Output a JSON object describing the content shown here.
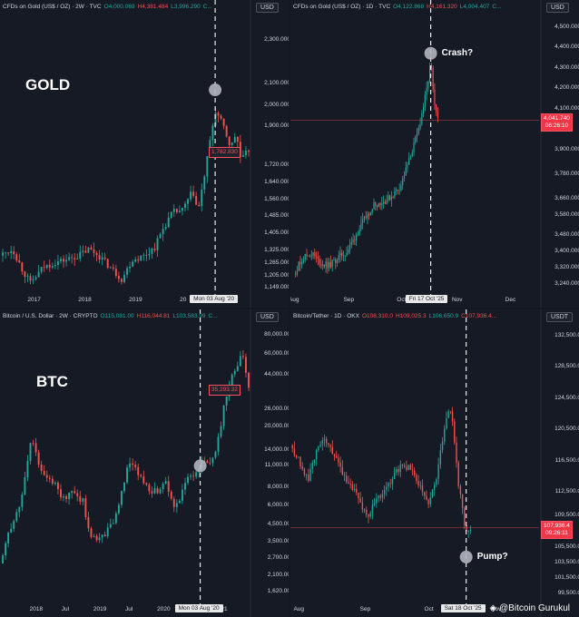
{
  "watermark": {
    "icon": "binance-diamond-icon",
    "text": "@Bitcoin Gurukul"
  },
  "colors": {
    "up": "#26a69a",
    "down": "#ef5350",
    "bg": "#161a25",
    "text": "#d1d4dc"
  },
  "chart_data": [
    {
      "type": "candlestick",
      "id": "gold-2w",
      "header": {
        "title": "CFDs on Gold (US$ / OZ) · 2W · TVC",
        "o": "O4,000.069",
        "h": "H4,381.484",
        "l": "L3,996.290",
        "c": "C..."
      },
      "currency": "USD",
      "label": "GOLD",
      "y_ticks": [
        "2,300.000",
        "2,100.000",
        "2,000.000",
        "1,900.000",
        "1,720.000",
        "1,640.000",
        "1,560.000",
        "1,485.000",
        "1,405.000",
        "1,325.000",
        "1,265.000",
        "1,205.000",
        "1,149.000"
      ],
      "y_tick_values": [
        2300,
        2100,
        2000,
        1900,
        1720,
        1640,
        1560,
        1485,
        1405,
        1325,
        1265,
        1205,
        1149
      ],
      "ylim": [
        1130,
        2420
      ],
      "x_ticks": [
        "2017",
        "2018",
        "2019",
        "20"
      ],
      "x_tick_values": [
        2017.0,
        2018.0,
        2019.0,
        2020.0
      ],
      "xlim": [
        2016.35,
        2021.25
      ],
      "crosshair_x": 2020.59,
      "crosshair_label": "Mon 03 Aug '20",
      "marker": {
        "x": 2020.59,
        "y": 2070
      },
      "last_price": "1,782.830",
      "path": [
        [
          2016.35,
          1300
        ],
        [
          2016.6,
          1330
        ],
        [
          2016.8,
          1230
        ],
        [
          2016.95,
          1170
        ],
        [
          2017.2,
          1245
        ],
        [
          2017.45,
          1270
        ],
        [
          2017.65,
          1280
        ],
        [
          2017.9,
          1300
        ],
        [
          2018.1,
          1330
        ],
        [
          2018.3,
          1300
        ],
        [
          2018.5,
          1250
        ],
        [
          2018.75,
          1190
        ],
        [
          2018.95,
          1280
        ],
        [
          2019.2,
          1300
        ],
        [
          2019.4,
          1340
        ],
        [
          2019.55,
          1420
        ],
        [
          2019.75,
          1500
        ],
        [
          2019.95,
          1510
        ],
        [
          2020.15,
          1600
        ],
        [
          2020.25,
          1500
        ],
        [
          2020.4,
          1700
        ],
        [
          2020.59,
          1975
        ],
        [
          2020.75,
          1900
        ],
        [
          2020.9,
          1800
        ],
        [
          2021.0,
          1870
        ],
        [
          2021.1,
          1740
        ],
        [
          2021.25,
          1790
        ]
      ]
    },
    {
      "type": "candlestick",
      "id": "gold-1d",
      "header": {
        "title": "CFDs on Gold (US$ / OZ) · 1D · TVC",
        "o": "O4,122.868",
        "h": "H4,161.320",
        "l": "L4,004.407",
        "c": "C..."
      },
      "currency": "USD",
      "annotation": "Crash?",
      "y_ticks": [
        "4,500.000",
        "4,400.000",
        "4,300.000",
        "4,200.000",
        "4,100.000",
        "3,900.000",
        "3,780.000",
        "3,660.000",
        "3,580.000",
        "3,480.000",
        "3,400.000",
        "3,320.000",
        "3,240.000"
      ],
      "y_tick_values": [
        4500,
        4400,
        4300,
        4200,
        4100,
        3900,
        3780,
        3660,
        3580,
        3480,
        3400,
        3320,
        3240
      ],
      "ylim": [
        3200,
        4560
      ],
      "x_ticks": [
        "Aug",
        "Sep",
        "Oct",
        "Nov",
        "Dec"
      ],
      "x_tick_values": [
        0,
        31,
        61,
        92,
        122
      ],
      "xlim": [
        -2,
        138
      ],
      "crosshair_x": 77,
      "crosshair_label": "Fri 17 Oct '25",
      "marker": {
        "x": 77,
        "y": 4370
      },
      "last_price": "4,041.740",
      "last_price_time": "06:26:10",
      "last_price_value": 4041.74,
      "path": [
        [
          0,
          3290
        ],
        [
          5,
          3370
        ],
        [
          10,
          3390
        ],
        [
          15,
          3340
        ],
        [
          20,
          3330
        ],
        [
          25,
          3370
        ],
        [
          30,
          3400
        ],
        [
          35,
          3480
        ],
        [
          40,
          3560
        ],
        [
          45,
          3630
        ],
        [
          50,
          3640
        ],
        [
          55,
          3670
        ],
        [
          60,
          3720
        ],
        [
          65,
          3850
        ],
        [
          70,
          3990
        ],
        [
          75,
          4200
        ],
        [
          77,
          4330
        ],
        [
          79,
          4110
        ],
        [
          81,
          4041
        ]
      ]
    },
    {
      "type": "candlestick",
      "id": "btc-2w",
      "header": {
        "title": "Bitcoin / U.S. Dollar · 2W · CRYPTO",
        "o": "O115,081.00",
        "h": "H116,044.81",
        "l": "L103,583.99",
        "c": "C..."
      },
      "currency": "USD",
      "label": "BTC",
      "scale": "log",
      "y_ticks": [
        "80,000.00",
        "60,000.00",
        "44,000.00",
        "26,000.00",
        "20,000.00",
        "14,000.00",
        "11,000.00",
        "8,000.00",
        "6,000.00",
        "4,500.00",
        "3,500.00",
        "2,700.00",
        "2,100.00",
        "1,620.00"
      ],
      "y_tick_values": [
        80000,
        60000,
        44000,
        26000,
        20000,
        14000,
        11000,
        8000,
        6000,
        4500,
        3500,
        2700,
        2100,
        1620
      ],
      "ylim": [
        1400,
        95000
      ],
      "x_ticks": [
        "2018",
        "Jul",
        "2019",
        "Jul",
        "2020",
        "21"
      ],
      "x_tick_values": [
        2018.0,
        2018.5,
        2019.0,
        2019.5,
        2020.0,
        2021.0
      ],
      "xlim": [
        2017.45,
        2021.35
      ],
      "crosshair_x": 2020.59,
      "crosshair_label": "Mon 03 Aug '20",
      "marker": {
        "x": 2020.59,
        "y": 11000
      },
      "last_price": "35,293.32",
      "path": [
        [
          2017.45,
          2500
        ],
        [
          2017.6,
          4200
        ],
        [
          2017.8,
          7000
        ],
        [
          2017.95,
          18000
        ],
        [
          2018.05,
          11000
        ],
        [
          2018.15,
          9000
        ],
        [
          2018.3,
          8500
        ],
        [
          2018.45,
          6500
        ],
        [
          2018.6,
          7500
        ],
        [
          2018.75,
          6400
        ],
        [
          2018.85,
          4000
        ],
        [
          2018.95,
          3700
        ],
        [
          2019.1,
          3900
        ],
        [
          2019.3,
          5500
        ],
        [
          2019.45,
          11000
        ],
        [
          2019.55,
          10500
        ],
        [
          2019.75,
          8000
        ],
        [
          2019.9,
          7300
        ],
        [
          2020.05,
          9000
        ],
        [
          2020.2,
          5500
        ],
        [
          2020.35,
          9000
        ],
        [
          2020.5,
          9300
        ],
        [
          2020.59,
          11500
        ],
        [
          2020.7,
          11000
        ],
        [
          2020.85,
          15000
        ],
        [
          2020.95,
          25000
        ],
        [
          2021.05,
          38000
        ],
        [
          2021.15,
          50000
        ],
        [
          2021.25,
          58000
        ],
        [
          2021.35,
          36000
        ]
      ]
    },
    {
      "type": "candlestick",
      "id": "btc-1d",
      "header": {
        "title": "Bitcoin/Tether · 1D · OKX",
        "o": "O108,310.0",
        "h": "H109,025.3",
        "l": "L106,650.9",
        "c": "C107,936.4..."
      },
      "currency": "USDT",
      "annotation": "Pump?",
      "y_ticks": [
        "132,500.0",
        "128,500.0",
        "124,500.0",
        "120,500.0",
        "116,500.0",
        "112,500.0",
        "109,500.0",
        "105,500.0",
        "103,500.0",
        "101,500.0",
        "99,500.0"
      ],
      "y_tick_values": [
        132500,
        128500,
        124500,
        120500,
        116500,
        112500,
        109500,
        105500,
        103500,
        101500,
        99500
      ],
      "ylim": [
        98500,
        134000
      ],
      "x_ticks": [
        "Aug",
        "Sep",
        "Oct",
        "Nov"
      ],
      "x_tick_values": [
        0,
        31,
        61,
        92
      ],
      "xlim": [
        -4,
        112
      ],
      "crosshair_x": 78,
      "crosshair_label": "Sat 18 Oct '25",
      "marker": {
        "x": 78,
        "y": 104200
      },
      "last_price": "107,936.4",
      "last_price_time": "09:26:11",
      "last_price_value": 107936.4,
      "path": [
        [
          -4,
          118500
        ],
        [
          0,
          116500
        ],
        [
          4,
          114000
        ],
        [
          8,
          117500
        ],
        [
          12,
          119500
        ],
        [
          16,
          117500
        ],
        [
          20,
          115000
        ],
        [
          24,
          113500
        ],
        [
          28,
          111500
        ],
        [
          32,
          109500
        ],
        [
          36,
          111500
        ],
        [
          40,
          112500
        ],
        [
          44,
          114500
        ],
        [
          48,
          116000
        ],
        [
          52,
          115500
        ],
        [
          56,
          113500
        ],
        [
          60,
          111000
        ],
        [
          64,
          114000
        ],
        [
          68,
          121000
        ],
        [
          70,
          123500
        ],
        [
          72,
          121000
        ],
        [
          74,
          114000
        ],
        [
          76,
          111000
        ],
        [
          78,
          107000
        ],
        [
          80,
          108000
        ]
      ]
    }
  ]
}
